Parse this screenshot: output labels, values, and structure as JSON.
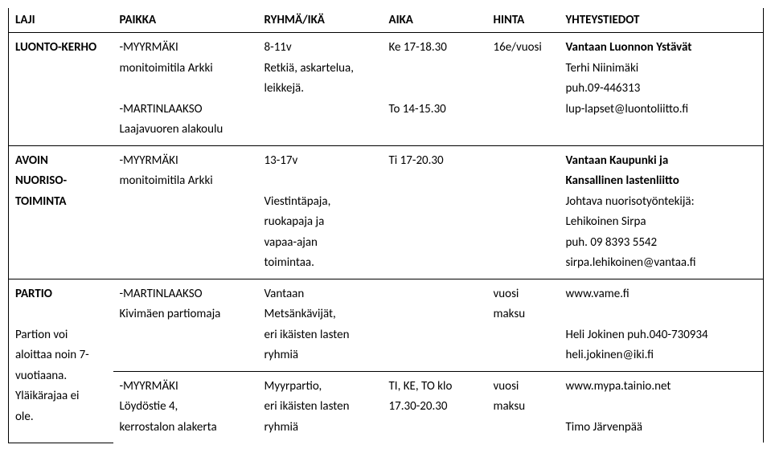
{
  "headers": {
    "laji": "LAJI",
    "paikka": "PAIKKA",
    "ryhma": "RYHMÄ/IKÄ",
    "aika": "AIKA",
    "hinta": "HINTA",
    "yhteys": "YHTEYSTIEDOT"
  },
  "rows": [
    {
      "laji": "LUONTO-KERHO",
      "paikka": "-MYYRMÄKI\nmonitoimitila Arkki\n\n-MARTINLAAKSO\nLaajavuoren alakoulu",
      "ryhma": "8-11v\nRetkiä, askartelua,\nleikkejä.",
      "aika": "Ke  17-18.30\n\n\nTo  14-15.30",
      "hinta": "16e/vuosi",
      "yhteys": "Vantaan Luonnon Ystävät\nTerhi Niinimäki\npuh.09-446313\nlup-lapset@luontoliitto.fi",
      "laji_bold": true,
      "yhteys_first_bold": true
    },
    {
      "laji": "AVOIN\nNUORISO-\nTOIMINTA",
      "paikka": "-MYYRMÄKI\nmonitoimitila Arkki",
      "ryhma": "13-17v\n\nViestintäpaja,\nruokapaja ja\nvapaa-ajan\ntoimintaa.",
      "aika": "Ti  17-20.30",
      "hinta": "",
      "yhteys": "Vantaan Kaupunki ja\nKansallinen lastenliitto\nJohtava nuorisotyöntekijä:\nLehikoinen Sirpa\npuh. 09 8393 5542\nsirpa.lehikoinen@vantaa.fi",
      "laji_bold": true,
      "yhteys_two_bold": true
    },
    {
      "laji": "PARTIO\n\nPartion voi\naloittaa noin 7-\nvuotiaana.\nYläikärajaa ei\nole.",
      "laji_partio": true,
      "sub": [
        {
          "paikka": "-MARTINLAAKSO\nKivimäen partiomaja",
          "ryhma": "Vantaan\nMetsänkävijät,\neri ikäisten lasten\nryhmiä",
          "aika": "",
          "hinta": "vuosi\nmaksu",
          "yhteys": "www.vame.fi\n\nHeli Jokinen  puh.040-730934\nheli.jokinen@iki.fi"
        },
        {
          "paikka": "-MYYRMÄKI\nLöydöstie 4,\nkerrostalon alakerta",
          "ryhma": "Myyrpartio,\neri ikäisten lasten\nryhmiä",
          "aika": "TI, KE, TO klo\n17.30-20.30",
          "hinta": "vuosi\nmaksu",
          "yhteys": "www.mypa.tainio.net\n\nTimo Järvenpää"
        }
      ]
    }
  ],
  "style": {
    "font_size_pt": 11,
    "header_font_weight": "bold",
    "border_color": "#000000",
    "background_color": "#ffffff",
    "text_color": "#000000"
  }
}
